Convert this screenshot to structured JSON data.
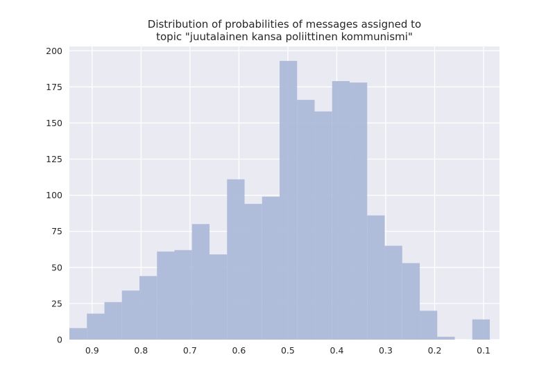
{
  "chart_data": {
    "type": "bar",
    "title": [
      "Distribution of probabilities of messages assigned to",
      "topic \"juutalainen kansa poliittinen kommunismi\""
    ],
    "xlabel": "",
    "ylabel": "",
    "x_axis_inverted": true,
    "xlim": [
      0.9465,
      0.0675
    ],
    "ylim": [
      0,
      203
    ],
    "xticks": [
      0.9,
      0.8,
      0.7,
      0.6,
      0.5,
      0.4,
      0.3,
      0.2,
      0.1
    ],
    "xtick_labels": [
      "0.9",
      "0.8",
      "0.7",
      "0.6",
      "0.5",
      "0.4",
      "0.3",
      "0.2",
      "0.1"
    ],
    "yticks": [
      0,
      25,
      50,
      75,
      100,
      125,
      150,
      175,
      200
    ],
    "ytick_labels": [
      "0",
      "25",
      "50",
      "75",
      "100",
      "125",
      "150",
      "175",
      "200"
    ],
    "grid": true,
    "bin_edges": [
      0.9465,
      0.9107,
      0.8749,
      0.8391,
      0.8033,
      0.7675,
      0.7317,
      0.6959,
      0.6601,
      0.6243,
      0.5885,
      0.5527,
      0.5169,
      0.4811,
      0.4453,
      0.4095,
      0.3737,
      0.3379,
      0.3021,
      0.2663,
      0.2305,
      0.1947,
      0.1589,
      0.1231,
      0.0873
    ],
    "values": [
      8,
      18,
      26,
      34,
      44,
      61,
      62,
      80,
      59,
      111,
      94,
      99,
      193,
      166,
      158,
      179,
      178,
      86,
      65,
      53,
      20,
      2,
      0,
      14
    ],
    "bar_color": "#aab9d8",
    "background_color": "#eaeaf2",
    "grid_color": "#ffffff"
  }
}
